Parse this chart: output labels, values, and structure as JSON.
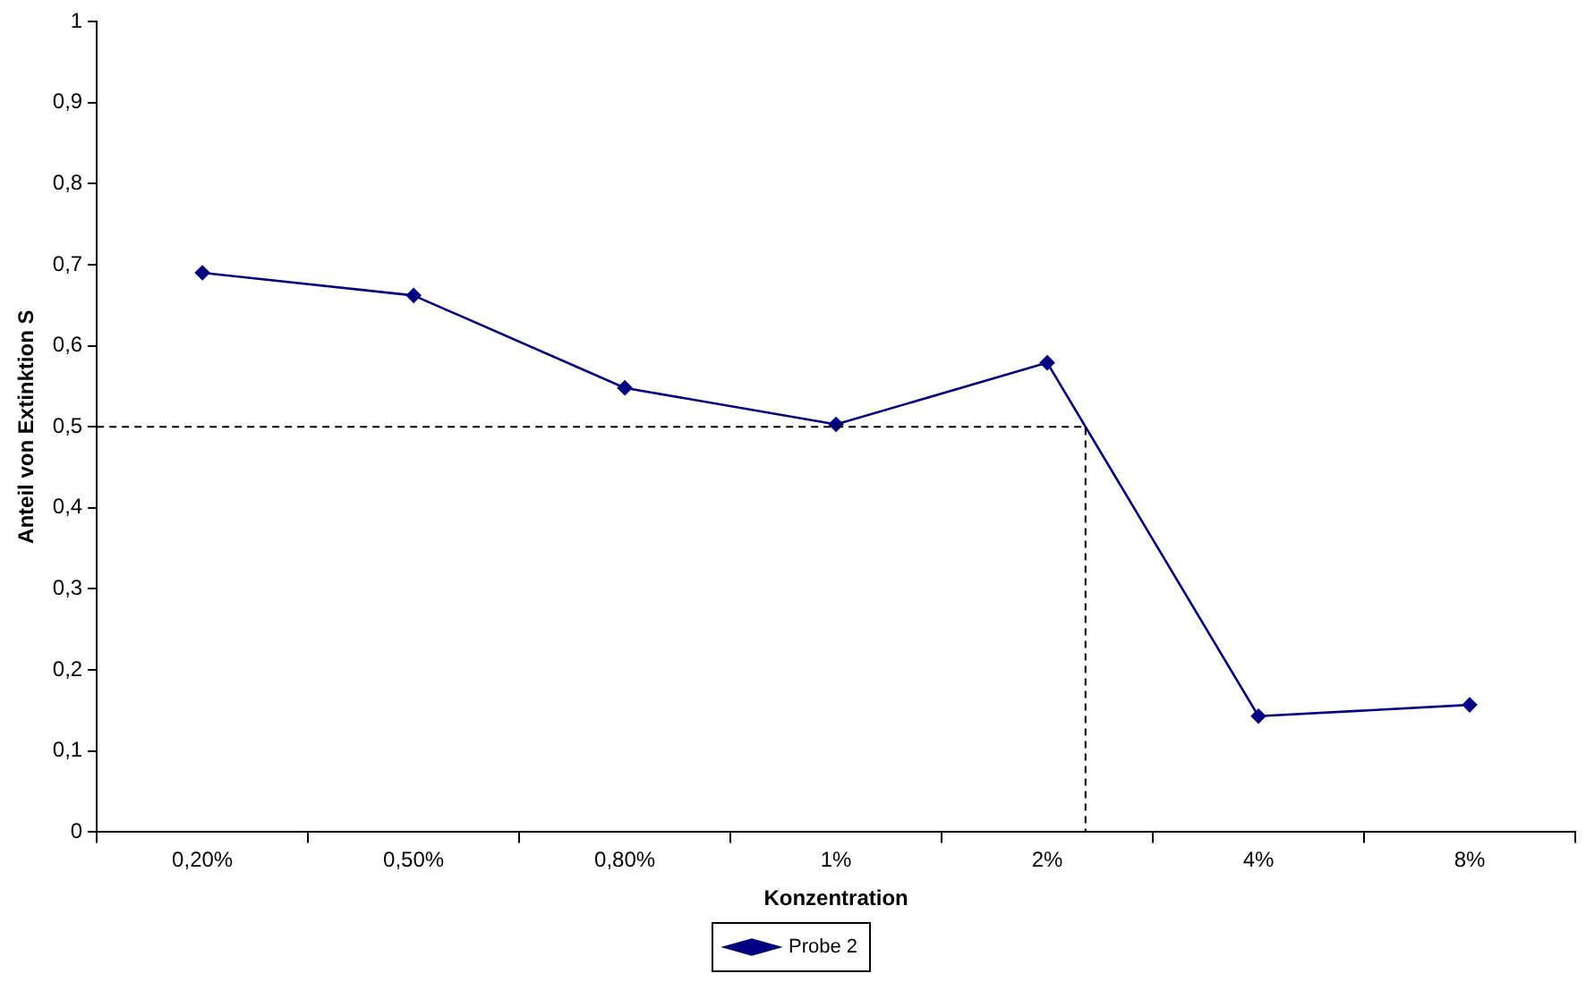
{
  "chart_data": {
    "type": "line",
    "xlabel": "Konzentration",
    "ylabel": "Anteil von Extinktion S",
    "categories": [
      "0,20%",
      "0,50%",
      "0,80%",
      "1%",
      "2%",
      "4%",
      "8%"
    ],
    "series": [
      {
        "name": "Probe 2",
        "color": "#000080",
        "values": [
          0.69,
          0.662,
          0.548,
          0.503,
          0.579,
          0.143,
          0.157
        ]
      }
    ],
    "ylim": [
      0,
      1
    ],
    "yticks": [
      {
        "value": 0,
        "label": "0"
      },
      {
        "value": 0.1,
        "label": "0,1"
      },
      {
        "value": 0.2,
        "label": "0,2"
      },
      {
        "value": 0.3,
        "label": "0,3"
      },
      {
        "value": 0.4,
        "label": "0,4"
      },
      {
        "value": 0.5,
        "label": "0,5"
      },
      {
        "value": 0.6,
        "label": "0,6"
      },
      {
        "value": 0.7,
        "label": "0,7"
      },
      {
        "value": 0.8,
        "label": "0,8"
      },
      {
        "value": 0.9,
        "label": "0,9"
      },
      {
        "value": 1,
        "label": "1"
      }
    ],
    "ref_lines": [
      {
        "axis": "y",
        "value": 0.5,
        "color": "#000000",
        "line_style": "dashed"
      }
    ],
    "grid": false,
    "legend": "bottom",
    "marker": "diamond",
    "line_style": "solid"
  }
}
